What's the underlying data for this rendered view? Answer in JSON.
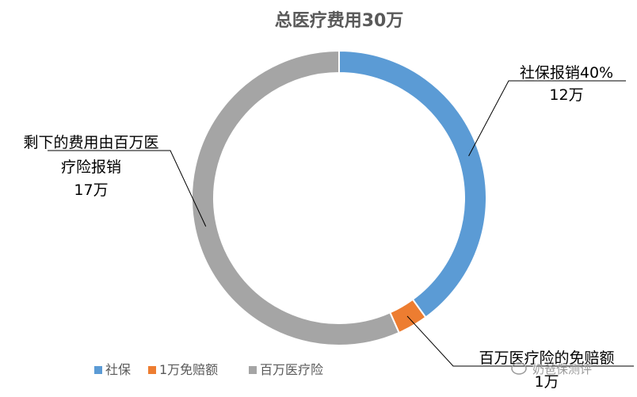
{
  "chart_data": {
    "type": "pie",
    "title": "总医疗费用30万",
    "categories": [
      "社保",
      "1万免赔额",
      "百万医疗险"
    ],
    "values": [
      12,
      1,
      17
    ],
    "unit": "万",
    "colors": [
      "#5B9BD5",
      "#ED7D31",
      "#A5A5A5"
    ],
    "legend_position": "bottom",
    "labels": [
      [
        "社保报销40%",
        "12万"
      ],
      [
        "百万医疗险的免赔额",
        "1万"
      ],
      [
        "剩下的费用由百万医",
        "疗险报销",
        "17万"
      ]
    ]
  },
  "watermark": "奶爸保测评"
}
